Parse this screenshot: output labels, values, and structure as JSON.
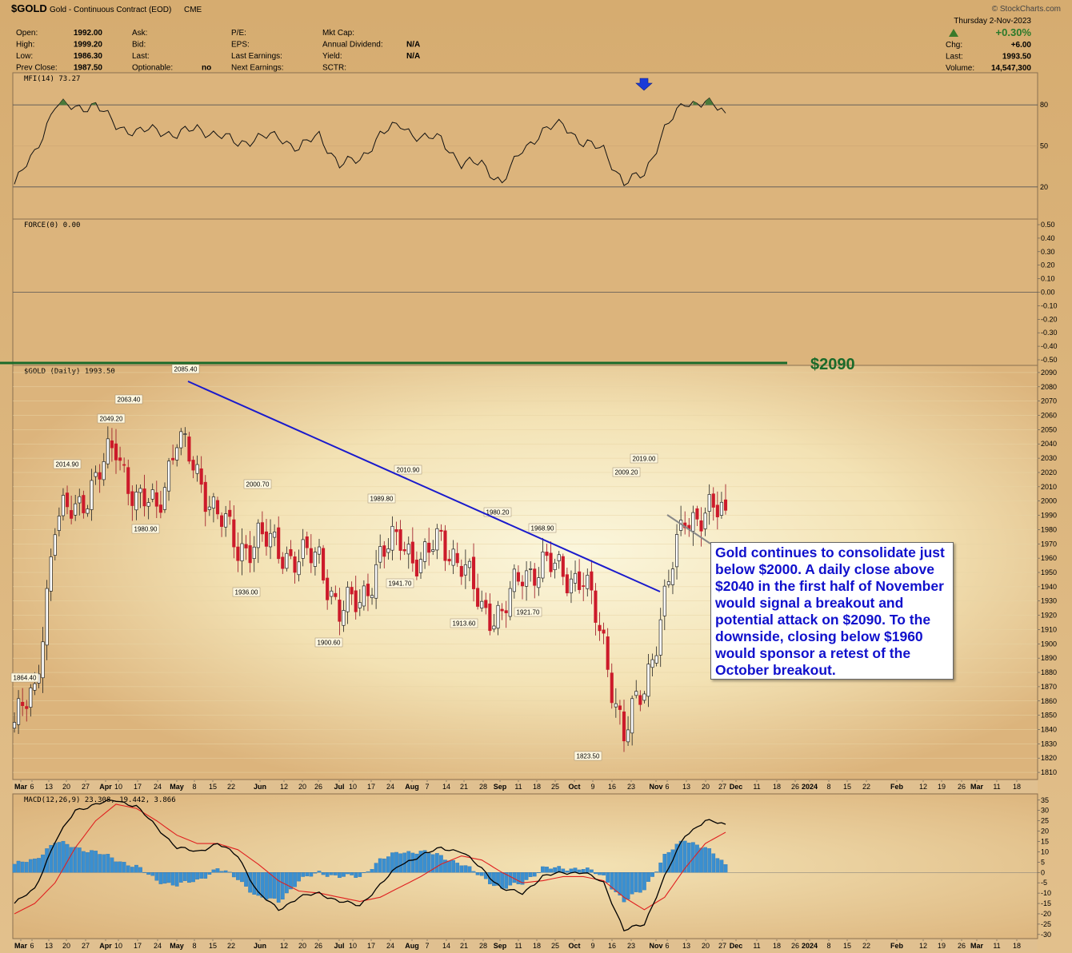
{
  "header": {
    "symbol": "$GOLD",
    "name": "Gold - Continuous Contract (EOD)",
    "exchange": "CME",
    "watermark": "© StockCharts.com",
    "date": "Thursday  2-Nov-2023",
    "fields": [
      {
        "label": "Open:",
        "value": "1992.00"
      },
      {
        "label": "High:",
        "value": "1999.20"
      },
      {
        "label": "Low:",
        "value": "1986.30"
      },
      {
        "label": "Prev Close:",
        "value": "1987.50"
      },
      {
        "label": "Ask:",
        "value": ""
      },
      {
        "label": "Bid:",
        "value": ""
      },
      {
        "label": "Last:",
        "value": ""
      },
      {
        "label": "Optionable:",
        "value": "no"
      },
      {
        "label": "P/E:",
        "value": ""
      },
      {
        "label": "EPS:",
        "value": ""
      },
      {
        "label": "Last Earnings:",
        "value": ""
      },
      {
        "label": "Next Earnings:",
        "value": ""
      },
      {
        "label": "Mkt Cap:",
        "value": ""
      },
      {
        "label": "Annual Dividend:",
        "value": "N/A"
      },
      {
        "label": "Yield:",
        "value": "N/A"
      },
      {
        "label": "SCTR:",
        "value": ""
      }
    ],
    "change_pct": "+0.30%",
    "right_fields": [
      {
        "label": "Chg:",
        "value": "+6.00"
      },
      {
        "label": "Last:",
        "value": "1993.50"
      },
      {
        "label": "Volume:",
        "value": "14,547,300"
      }
    ]
  },
  "colors": {
    "panel_bg": "#d8b27a",
    "panel_light": "#faf4d4",
    "up_candle": "#ffffff",
    "down_candle": "#cc1a2a",
    "trendline": "#1a1acc",
    "level_line": "#1a6a2a",
    "macd_line": "#000000",
    "signal_line": "#e02020",
    "histogram": "#3a8fd0",
    "mfi_fill": "#4a7a3a",
    "arrow": "#1a3ad8",
    "callout_text": "#1010cc"
  },
  "annotations": {
    "level_label": "$2090",
    "callout": "Gold continues to consolidate just below $2000. A daily close above $2040 in the first half of November would signal a breakout and potential attack on $2090. To the downside, closing below $1960 would sponsor a retest of the October breakout.",
    "price_labels": [
      "2085.40",
      "2063.40",
      "2049.20",
      "2014.90",
      "1980.90",
      "1864.40",
      "2000.70",
      "1936.00",
      "1900.60",
      "1989.80",
      "1941.70",
      "2010.90",
      "1913.60",
      "1980.20",
      "1968.90",
      "1921.70",
      "1823.50",
      "2009.20",
      "2019.00"
    ]
  },
  "chart_data": [
    {
      "type": "line",
      "title": "MFI(14) 73.27",
      "ylim": [
        0,
        100
      ],
      "y_ticks": [
        "80",
        "50",
        "20"
      ],
      "reference_lines": [
        80,
        20
      ],
      "x": [
        "Mar 6",
        "Mar 13",
        "Mar 20",
        "Mar 27",
        "Apr 3",
        "Apr 10",
        "Apr 17",
        "Apr 24",
        "May 1",
        "May 8",
        "May 15",
        "May 22",
        "May 29",
        "Jun 5",
        "Jun 12",
        "Jun 19",
        "Jun 26",
        "Jul 3",
        "Jul 10",
        "Jul 17",
        "Jul 24",
        "Jul 31",
        "Aug 7",
        "Aug 14",
        "Aug 21",
        "Aug 28",
        "Sep 4",
        "Sep 11",
        "Sep 18",
        "Sep 25",
        "Oct 2",
        "Oct 9",
        "Oct 16",
        "Oct 23",
        "Oct 30",
        "Nov 2"
      ],
      "series": [
        {
          "values": [
            22,
            45,
            80,
            78,
            80,
            65,
            60,
            62,
            58,
            63,
            58,
            52,
            56,
            57,
            48,
            58,
            36,
            40,
            58,
            66,
            55,
            56,
            36,
            38,
            22,
            48,
            60,
            67,
            51,
            48,
            22,
            30,
            62,
            82,
            82,
            74
          ]
        }
      ]
    },
    {
      "type": "line",
      "title": "FORCE(0) 0.00",
      "ylim": [
        -0.5,
        0.5
      ],
      "y_ticks": [
        "0.50",
        "0.40",
        "0.30",
        "0.20",
        "0.10",
        "0.00",
        "-0.10",
        "-0.20",
        "-0.30",
        "-0.40",
        "-0.50"
      ],
      "series": [
        {
          "values": [
            0
          ]
        }
      ]
    },
    {
      "type": "candlestick",
      "title": "$GOLD (Daily) 1993.50",
      "ylim": [
        1805,
        2095
      ],
      "y_ticks": [
        "2090",
        "2080",
        "2070",
        "2060",
        "2050",
        "2040",
        "2030",
        "2020",
        "2010",
        "2000",
        "1990",
        "1980",
        "1970",
        "1960",
        "1950",
        "1940",
        "1930",
        "1920",
        "1910",
        "1900",
        "1890",
        "1880",
        "1870",
        "1860",
        "1850",
        "1840",
        "1830",
        "1820",
        "1810"
      ],
      "x_ticks": [
        "Mar",
        "6",
        "13",
        "20",
        "27",
        "Apr",
        "10",
        "17",
        "24",
        "May",
        "8",
        "15",
        "22",
        "Jun",
        "12",
        "20",
        "26",
        "Jul",
        "10",
        "17",
        "24",
        "Aug",
        "7",
        "14",
        "21",
        "28",
        "Sep",
        "11",
        "18",
        "25",
        "Oct",
        "9",
        "16",
        "23",
        "Nov",
        "6",
        "13",
        "20",
        "27",
        "Dec",
        "11",
        "18",
        "26",
        "2024",
        "8",
        "15",
        "22",
        "Feb",
        "12",
        "19",
        "26",
        "Mar",
        "11",
        "18"
      ],
      "x": [
        "Mar 6",
        "Mar 13",
        "Mar 20",
        "Mar 27",
        "Apr 3",
        "Apr 10",
        "Apr 17",
        "Apr 24",
        "May 1",
        "May 8",
        "May 15",
        "May 22",
        "May 29",
        "Jun 5",
        "Jun 12",
        "Jun 19",
        "Jun 26",
        "Jul 3",
        "Jul 10",
        "Jul 17",
        "Jul 24",
        "Jul 31",
        "Aug 7",
        "Aug 14",
        "Aug 21",
        "Aug 28",
        "Sep 4",
        "Sep 11",
        "Sep 18",
        "Sep 25",
        "Oct 2",
        "Oct 9",
        "Oct 16",
        "Oct 23",
        "Oct 30",
        "Nov 2"
      ],
      "series": [
        {
          "values": [
            1845,
            1865,
            1985,
            1995,
            2015,
            2038,
            2000,
            1995,
            2045,
            2018,
            1992,
            1965,
            1975,
            1965,
            1960,
            1960,
            1922,
            1930,
            1960,
            1975,
            1955,
            1975,
            1955,
            1925,
            1920,
            1950,
            1955,
            1950,
            1945,
            1900,
            1835,
            1870,
            1930,
            1990,
            1990,
            1993.5
          ]
        }
      ],
      "trendline": {
        "from": {
          "x": "May 4",
          "y": 2085.4
        },
        "to": {
          "x": "Nov 2",
          "y": 1932
        }
      },
      "reference_lines": [
        2090
      ]
    },
    {
      "type": "bar",
      "title": "MACD(12,26,9) 23.308, 19.442, 3.866",
      "ylim": [
        -32,
        38
      ],
      "y_ticks": [
        "35",
        "30",
        "25",
        "20",
        "15",
        "10",
        "5",
        "0",
        "-5",
        "-10",
        "-15",
        "-20",
        "-25",
        "-30"
      ],
      "x": [
        "Mar 6",
        "Mar 13",
        "Mar 20",
        "Mar 27",
        "Apr 3",
        "Apr 10",
        "Apr 17",
        "Apr 24",
        "May 1",
        "May 8",
        "May 15",
        "May 22",
        "May 29",
        "Jun 5",
        "Jun 12",
        "Jun 19",
        "Jun 26",
        "Jul 3",
        "Jul 10",
        "Jul 17",
        "Jul 24",
        "Jul 31",
        "Aug 7",
        "Aug 14",
        "Aug 21",
        "Aug 28",
        "Sep 4",
        "Sep 11",
        "Sep 18",
        "Sep 25",
        "Oct 2",
        "Oct 9",
        "Oct 16",
        "Oct 23",
        "Oct 30",
        "Nov 2"
      ],
      "series": [
        {
          "name": "MACD(12,26,9)",
          "values": [
            -15,
            -8,
            15,
            30,
            33,
            35,
            32,
            22,
            12,
            10,
            14,
            8,
            -10,
            -18,
            -12,
            -10,
            -14,
            -16,
            -6,
            4,
            8,
            12,
            10,
            2,
            -8,
            -10,
            -2,
            0,
            0,
            -5,
            -28,
            -25,
            -2,
            18,
            25,
            23.308
          ]
        },
        {
          "name": "Signal",
          "values": [
            -20,
            -15,
            -5,
            12,
            25,
            33,
            31,
            25,
            18,
            14,
            14,
            11,
            4,
            -4,
            -9,
            -10,
            -12,
            -14,
            -12,
            -7,
            -2,
            4,
            8,
            6,
            0,
            -5,
            -4,
            -2,
            -2,
            -4,
            -12,
            -18,
            -12,
            2,
            14,
            19.442
          ]
        },
        {
          "name": "Histogram",
          "values": [
            4,
            6,
            15,
            12,
            10,
            6,
            3,
            -4,
            -6,
            -4,
            2,
            -3,
            -12,
            -14,
            -4,
            0,
            -2,
            -2,
            6,
            10,
            10,
            8,
            4,
            -2,
            -8,
            -5,
            2,
            2,
            2,
            -2,
            -14,
            -8,
            8,
            16,
            12,
            3.866
          ]
        }
      ]
    }
  ]
}
